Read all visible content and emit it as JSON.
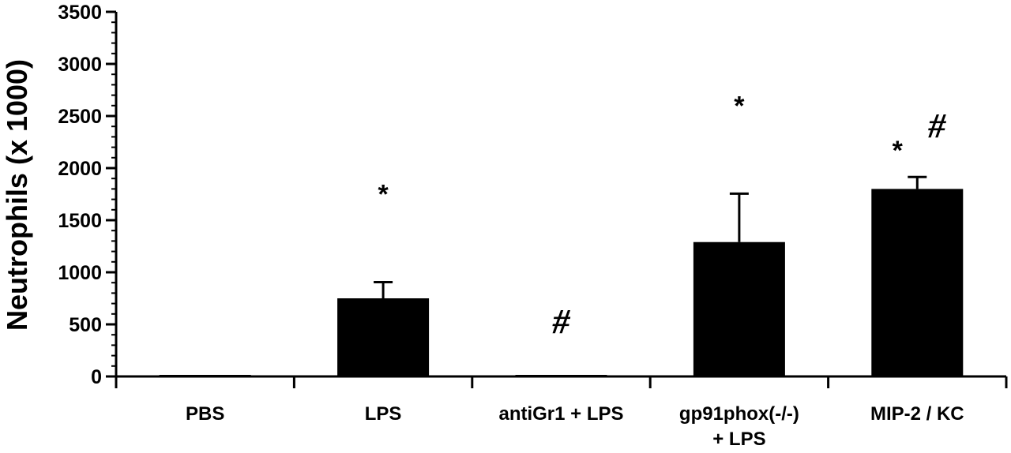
{
  "chart_data": {
    "type": "bar",
    "title": "",
    "xlabel": "",
    "ylabel": "Neutrophils (x 1000)",
    "ylim": [
      0,
      3500
    ],
    "yticks": [
      0,
      500,
      1000,
      1500,
      2000,
      2500,
      3000,
      3500
    ],
    "ytick_labels": [
      "0",
      "500",
      "1000",
      "1500",
      "2000",
      "2500",
      "3000",
      "3500"
    ],
    "categories": [
      [
        "PBS"
      ],
      [
        "LPS"
      ],
      [
        "antiGr1 + LPS"
      ],
      [
        "gp91phox(-/-)",
        "+ LPS"
      ],
      [
        "MIP-2 / KC"
      ]
    ],
    "values": [
      0,
      750,
      0,
      1290,
      1800
    ],
    "errors": [
      0,
      155,
      0,
      465,
      115
    ],
    "annotations": [
      [],
      [
        "*"
      ],
      [
        "#"
      ],
      [
        "*"
      ],
      [
        "*",
        "#"
      ]
    ],
    "bar_color": "#000000",
    "grid": false,
    "legend": "none"
  }
}
